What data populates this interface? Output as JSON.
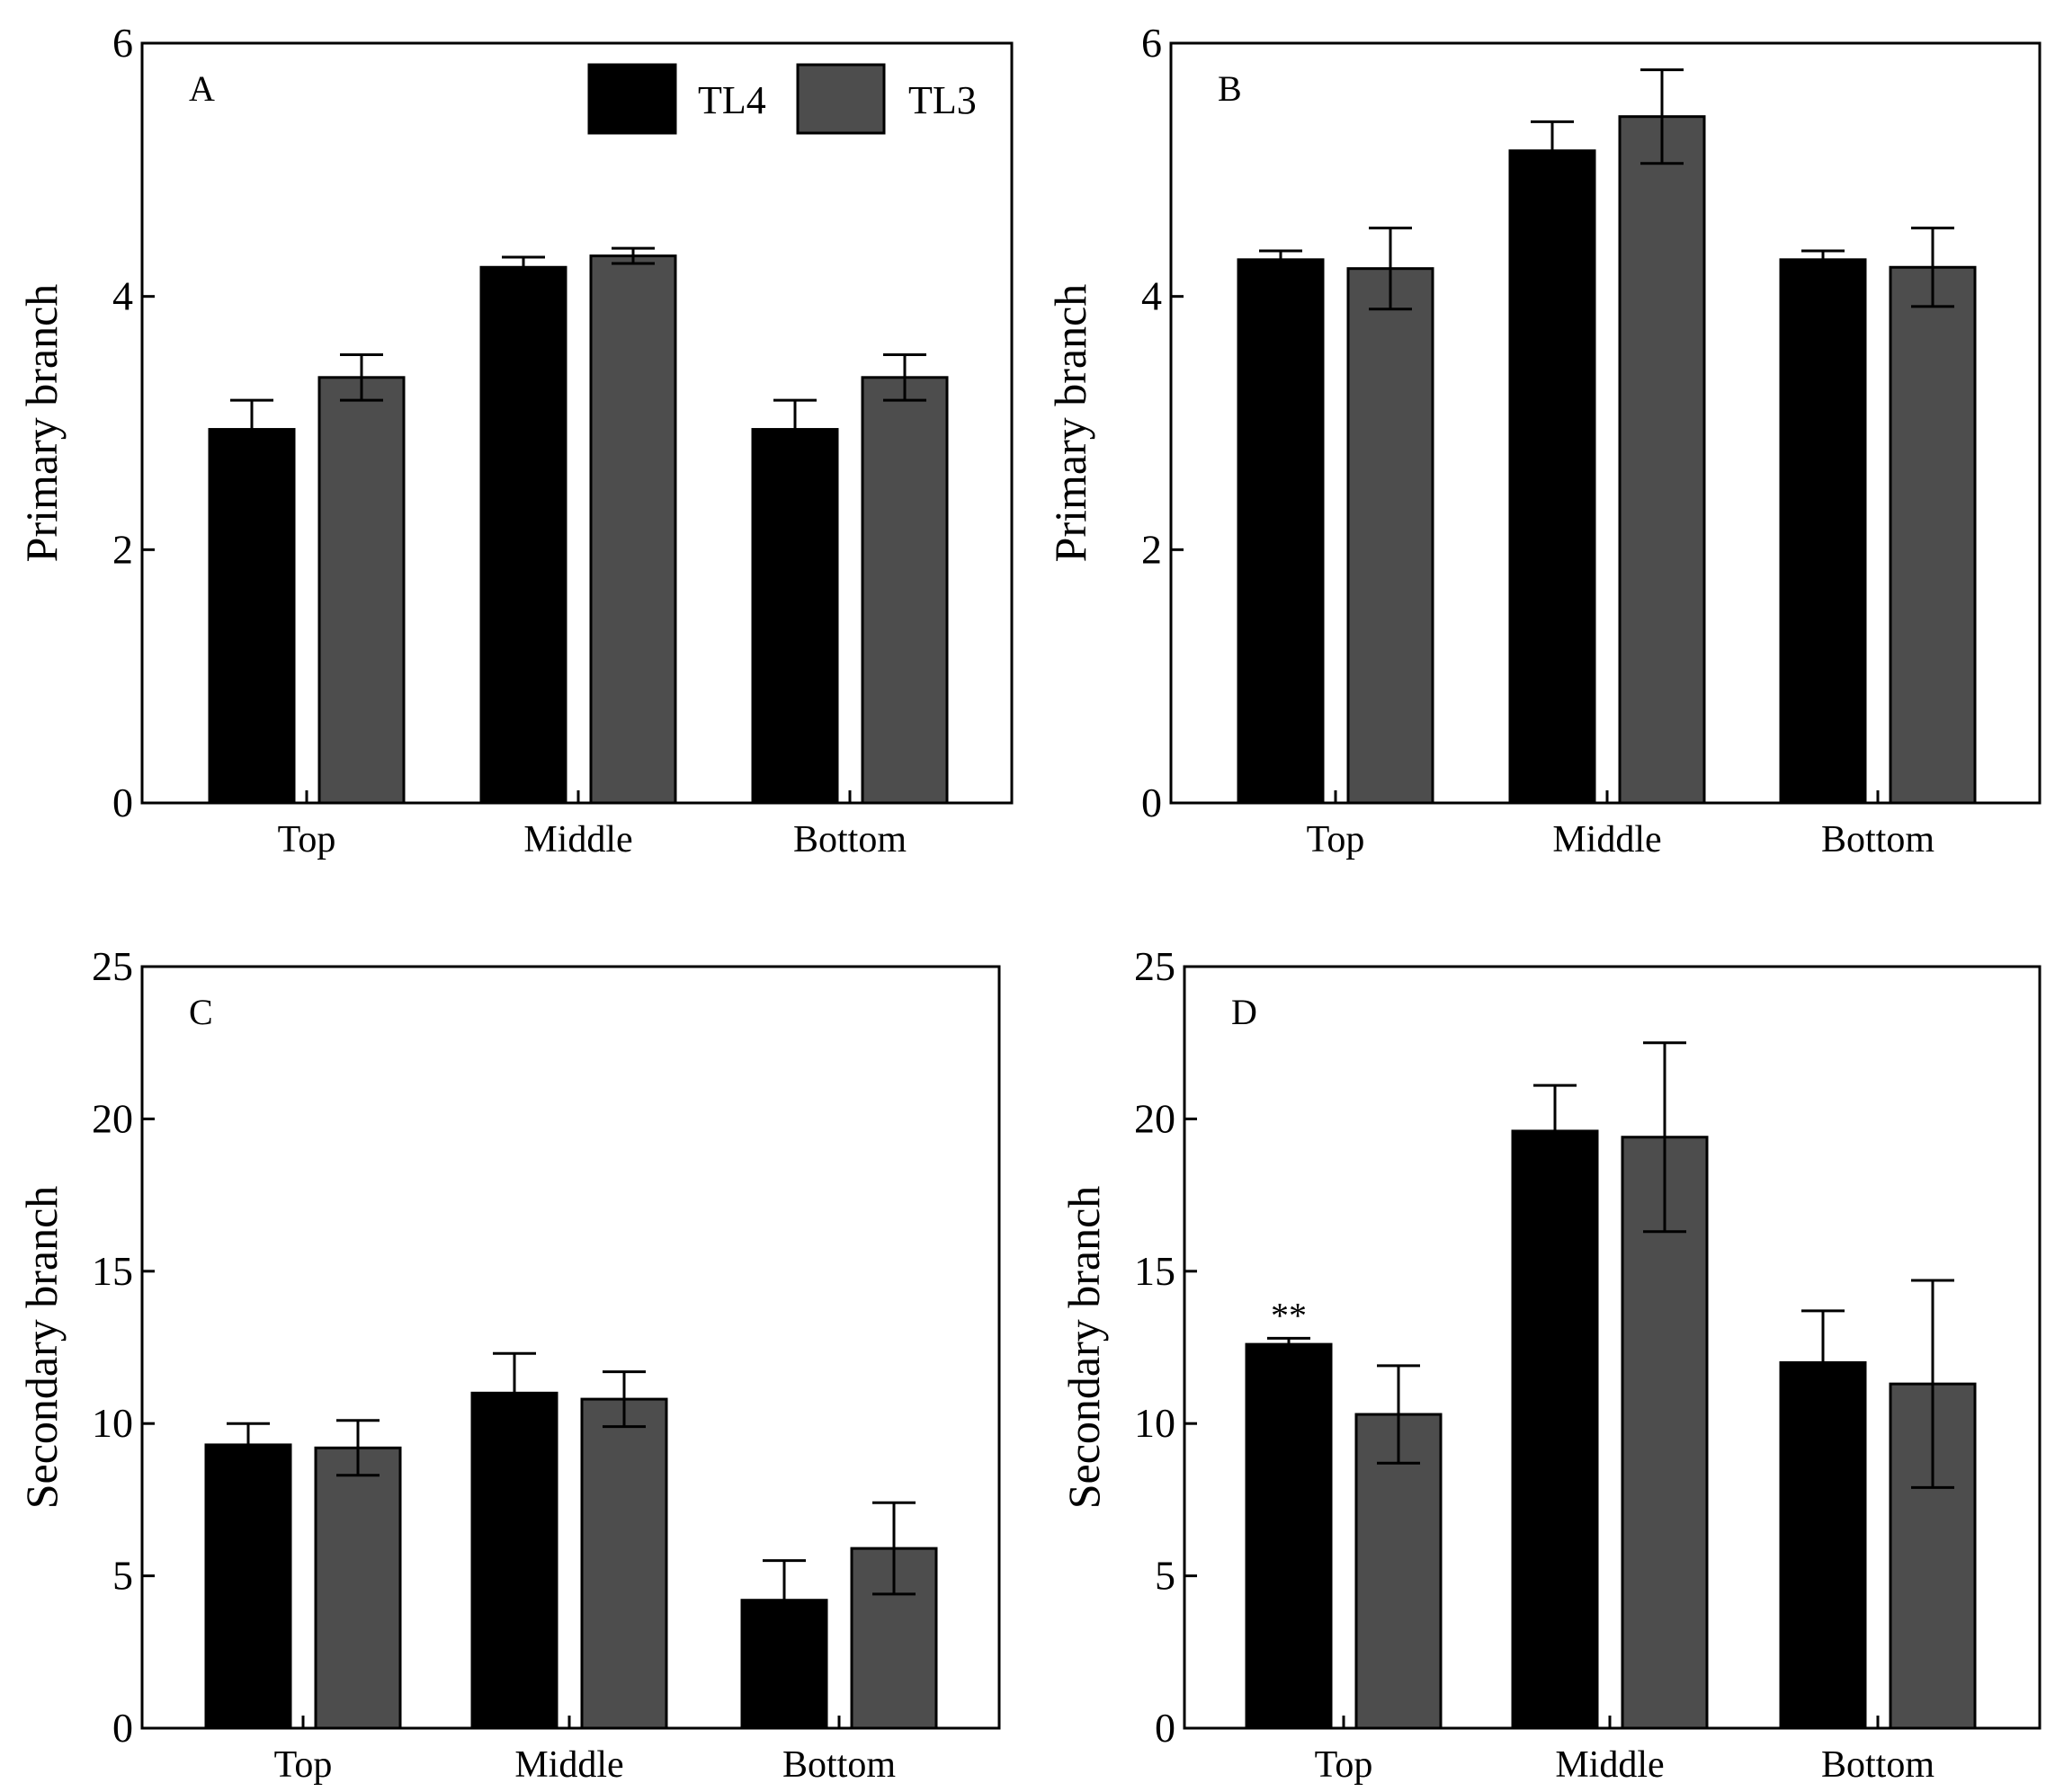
{
  "legend": {
    "placement": "top-right of panel A",
    "entries": [
      {
        "name": "TL4",
        "color": "#000000"
      },
      {
        "name": "TL3",
        "color": "#4d4d4d"
      }
    ]
  },
  "chart_data": [
    {
      "type": "bar",
      "panel": "A",
      "categories": [
        "Top",
        "Middle",
        "Bottom"
      ],
      "ylabel": "Primary branch",
      "xlabel": "",
      "ylim": [
        0,
        6
      ],
      "yticks": [
        0,
        2,
        4,
        6
      ],
      "grid": false,
      "series": [
        {
          "name": "TL4",
          "color": "#000000",
          "values": [
            2.95,
            4.23,
            2.95
          ],
          "errors": [
            0.23,
            0.08,
            0.23
          ]
        },
        {
          "name": "TL3",
          "color": "#4d4d4d",
          "values": [
            3.36,
            4.32,
            3.36
          ],
          "errors": [
            0.18,
            0.06,
            0.18
          ]
        }
      ],
      "annotations": []
    },
    {
      "type": "bar",
      "panel": "B",
      "categories": [
        "Top",
        "Middle",
        "Bottom"
      ],
      "ylabel": "Primary branch",
      "xlabel": "",
      "ylim": [
        0,
        6
      ],
      "yticks": [
        0,
        2,
        4,
        6
      ],
      "grid": false,
      "series": [
        {
          "name": "TL4",
          "color": "#000000",
          "values": [
            4.29,
            5.15,
            4.29
          ],
          "errors": [
            0.07,
            0.23,
            0.07
          ]
        },
        {
          "name": "TL3",
          "color": "#4d4d4d",
          "values": [
            4.22,
            5.42,
            4.23
          ],
          "errors": [
            0.32,
            0.37,
            0.31
          ]
        }
      ],
      "annotations": []
    },
    {
      "type": "bar",
      "panel": "C",
      "categories": [
        "Top",
        "Middle",
        "Bottom"
      ],
      "ylabel": "Secondary branch",
      "xlabel": "",
      "ylim": [
        0,
        25
      ],
      "yticks": [
        0,
        5,
        10,
        15,
        20,
        25
      ],
      "grid": false,
      "series": [
        {
          "name": "TL4",
          "color": "#000000",
          "values": [
            9.3,
            11.0,
            4.2
          ],
          "errors": [
            0.7,
            1.3,
            1.3
          ]
        },
        {
          "name": "TL3",
          "color": "#4d4d4d",
          "values": [
            9.2,
            10.8,
            5.9
          ],
          "errors": [
            0.9,
            0.9,
            1.5
          ]
        }
      ],
      "annotations": []
    },
    {
      "type": "bar",
      "panel": "D",
      "categories": [
        "Top",
        "Middle",
        "Bottom"
      ],
      "ylabel": "Secondary branch",
      "xlabel": "",
      "ylim": [
        0,
        25
      ],
      "yticks": [
        0,
        5,
        10,
        15,
        20,
        25
      ],
      "grid": false,
      "series": [
        {
          "name": "TL4",
          "color": "#000000",
          "values": [
            12.6,
            19.6,
            12.0
          ],
          "errors": [
            0.2,
            1.5,
            1.7
          ]
        },
        {
          "name": "TL3",
          "color": "#4d4d4d",
          "values": [
            10.3,
            19.4,
            11.3
          ],
          "errors": [
            1.6,
            3.1,
            3.4
          ]
        }
      ],
      "annotations": [
        {
          "text": "**",
          "category": "Top",
          "series": "TL4"
        }
      ]
    }
  ]
}
